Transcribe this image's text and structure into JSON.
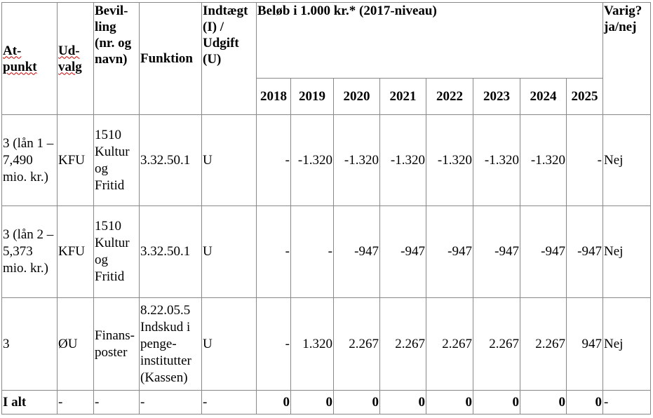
{
  "headers": {
    "atpunkt": [
      "At-",
      "punkt"
    ],
    "udvalg": [
      "Ud-",
      "valg"
    ],
    "bevilling": "Bevil-ling (nr. og navn)",
    "funktion": "Funktion",
    "indtaegt": "Indtægt (I) / Udgift (U)",
    "belob": "Beløb i 1.000 kr.* (2017-niveau)",
    "varig": "Varig? ja/nej",
    "years": [
      "2018",
      "2019",
      "2020",
      "2021",
      "2022",
      "2023",
      "2024",
      "2025"
    ]
  },
  "rows": [
    {
      "atpunkt": "3 (lån 1 – 7,490 mio. kr.)",
      "udvalg": "KFU",
      "bevilling": "1510 Kultur og Fritid",
      "funktion": "3.32.50.1",
      "iu": "U",
      "values": [
        "-",
        "-1.320",
        "-1.320",
        "-1.320",
        "-1.320",
        "-1.320",
        "-1.320",
        "-"
      ],
      "varig": "Nej"
    },
    {
      "atpunkt": "3 (lån 2 – 5,373 mio. kr.)",
      "udvalg": "KFU",
      "bevilling": "1510 Kultur og Fritid",
      "funktion": "3.32.50.1",
      "iu": "U",
      "values": [
        "-",
        "-",
        "-947",
        "-947",
        "-947",
        "-947",
        "-947",
        "-947"
      ],
      "varig": "Nej"
    },
    {
      "atpunkt": "3",
      "udvalg": "ØU",
      "bevilling": "Finans-poster",
      "funktion": "8.22.05.5 Indskud i penge-institutter (Kassen)",
      "iu": "U",
      "values": [
        "-",
        "1.320",
        "2.267",
        "2.267",
        "2.267",
        "2.267",
        "2.267",
        "947"
      ],
      "varig": "Nej"
    }
  ],
  "total": {
    "label": "I alt",
    "udvalg": "-",
    "bevilling": "-",
    "funktion": "-",
    "iu": "-",
    "values": [
      "0",
      "0",
      "0",
      "0",
      "0",
      "0",
      "0",
      "0"
    ],
    "varig": "-"
  }
}
